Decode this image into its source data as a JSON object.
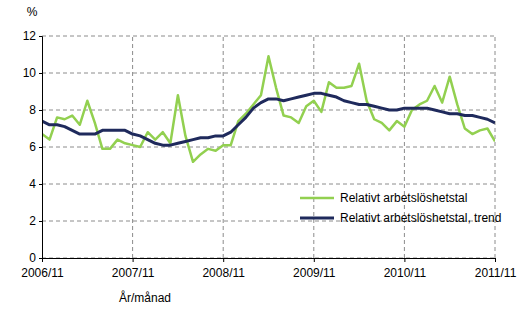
{
  "chart_data": {
    "type": "line",
    "ylabel": "%",
    "xlabel": "År/månad",
    "categories": [
      "2006/11",
      null,
      null,
      null,
      null,
      null,
      null,
      null,
      null,
      null,
      null,
      null,
      "2007/11",
      null,
      null,
      null,
      null,
      null,
      null,
      null,
      null,
      null,
      null,
      null,
      "2008/11",
      null,
      null,
      null,
      null,
      null,
      null,
      null,
      null,
      null,
      null,
      null,
      "2009/11",
      null,
      null,
      null,
      null,
      null,
      null,
      null,
      null,
      null,
      null,
      null,
      "2010/11",
      null,
      null,
      null,
      null,
      null,
      null,
      null,
      null,
      null,
      null,
      null,
      "2011/11"
    ],
    "series": [
      {
        "name": "Relativt arbetslöshetstal",
        "color": "#92d050",
        "values": [
          6.7,
          6.4,
          7.6,
          7.5,
          7.7,
          7.2,
          8.5,
          7.3,
          5.9,
          5.9,
          6.4,
          6.2,
          6.1,
          6.0,
          6.8,
          6.4,
          6.8,
          6.2,
          8.8,
          6.6,
          5.2,
          5.6,
          5.9,
          5.8,
          6.1,
          6.1,
          7.4,
          7.8,
          8.3,
          8.8,
          10.9,
          9.2,
          7.7,
          7.6,
          7.3,
          8.2,
          8.5,
          7.9,
          9.5,
          9.2,
          9.2,
          9.3,
          10.5,
          8.5,
          7.5,
          7.3,
          6.9,
          7.4,
          7.1,
          8.0,
          8.3,
          8.5,
          9.3,
          8.4,
          9.8,
          8.3,
          7.0,
          6.7,
          6.9,
          7.0,
          6.3
        ]
      },
      {
        "name": "Relativt arbetslöshetstal, trend",
        "color": "#1f2a5c",
        "values": [
          7.4,
          7.2,
          7.2,
          7.1,
          6.9,
          6.7,
          6.7,
          6.7,
          6.9,
          6.9,
          6.9,
          6.9,
          6.7,
          6.6,
          6.4,
          6.2,
          6.1,
          6.1,
          6.2,
          6.3,
          6.4,
          6.5,
          6.5,
          6.6,
          6.6,
          6.8,
          7.2,
          7.6,
          8.1,
          8.4,
          8.6,
          8.6,
          8.5,
          8.6,
          8.7,
          8.8,
          8.9,
          8.9,
          8.8,
          8.7,
          8.5,
          8.4,
          8.3,
          8.3,
          8.2,
          8.1,
          8.0,
          8.0,
          8.1,
          8.1,
          8.1,
          8.1,
          8.0,
          7.9,
          7.8,
          7.8,
          7.7,
          7.7,
          7.6,
          7.5,
          7.3
        ]
      }
    ],
    "ylim": [
      0,
      12
    ],
    "yticks": [
      0,
      2,
      4,
      6,
      8,
      10,
      12
    ],
    "grid": true,
    "legend": "lower right"
  }
}
